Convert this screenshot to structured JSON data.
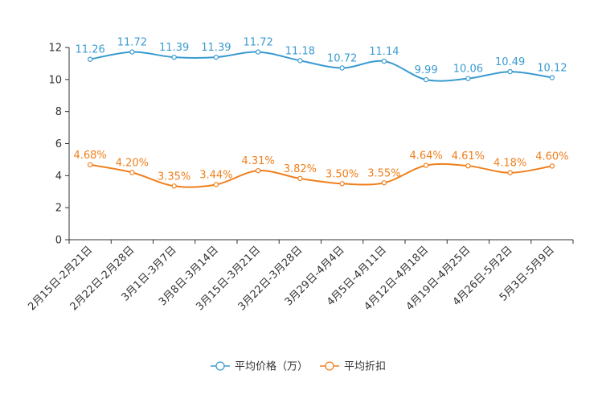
{
  "chart_data": {
    "type": "line",
    "title": "",
    "xlabel": "",
    "ylabel": "",
    "ylim": [
      0,
      12
    ],
    "yticks": [
      0,
      2,
      4,
      6,
      8,
      10,
      12
    ],
    "grid": false,
    "legend_position": "bottom-center",
    "categories": [
      "2月15日-2月21日",
      "2月22日-2月28日",
      "3月1日-3月7日",
      "3月8日-3月14日",
      "3月15日-3月21日",
      "3月22日-3月28日",
      "3月29日-4月4日",
      "4月5日-4月11日",
      "4月12日-4月18日",
      "4月19日-4月25日",
      "4月26日-5月2日",
      "5月3日-5月9日"
    ],
    "series": [
      {
        "name": "平均价格（万）",
        "color": "#3a9bd0",
        "values": [
          11.26,
          11.72,
          11.39,
          11.39,
          11.72,
          11.18,
          10.72,
          11.14,
          9.99,
          10.06,
          10.49,
          10.12
        ],
        "labels": [
          "11.26",
          "11.72",
          "11.39",
          "11.39",
          "11.72",
          "11.18",
          "10.72",
          "11.14",
          "9.99",
          "10.06",
          "10.49",
          "10.12"
        ]
      },
      {
        "name": "平均折扣",
        "color": "#f07f1c",
        "values": [
          4.68,
          4.2,
          3.35,
          3.44,
          4.31,
          3.82,
          3.5,
          3.55,
          4.64,
          4.61,
          4.18,
          4.6
        ],
        "labels": [
          "4.68%",
          "4.20%",
          "3.35%",
          "3.44%",
          "4.31%",
          "3.82%",
          "3.50%",
          "3.55%",
          "4.64%",
          "4.61%",
          "4.18%",
          "4.60%"
        ]
      }
    ]
  }
}
